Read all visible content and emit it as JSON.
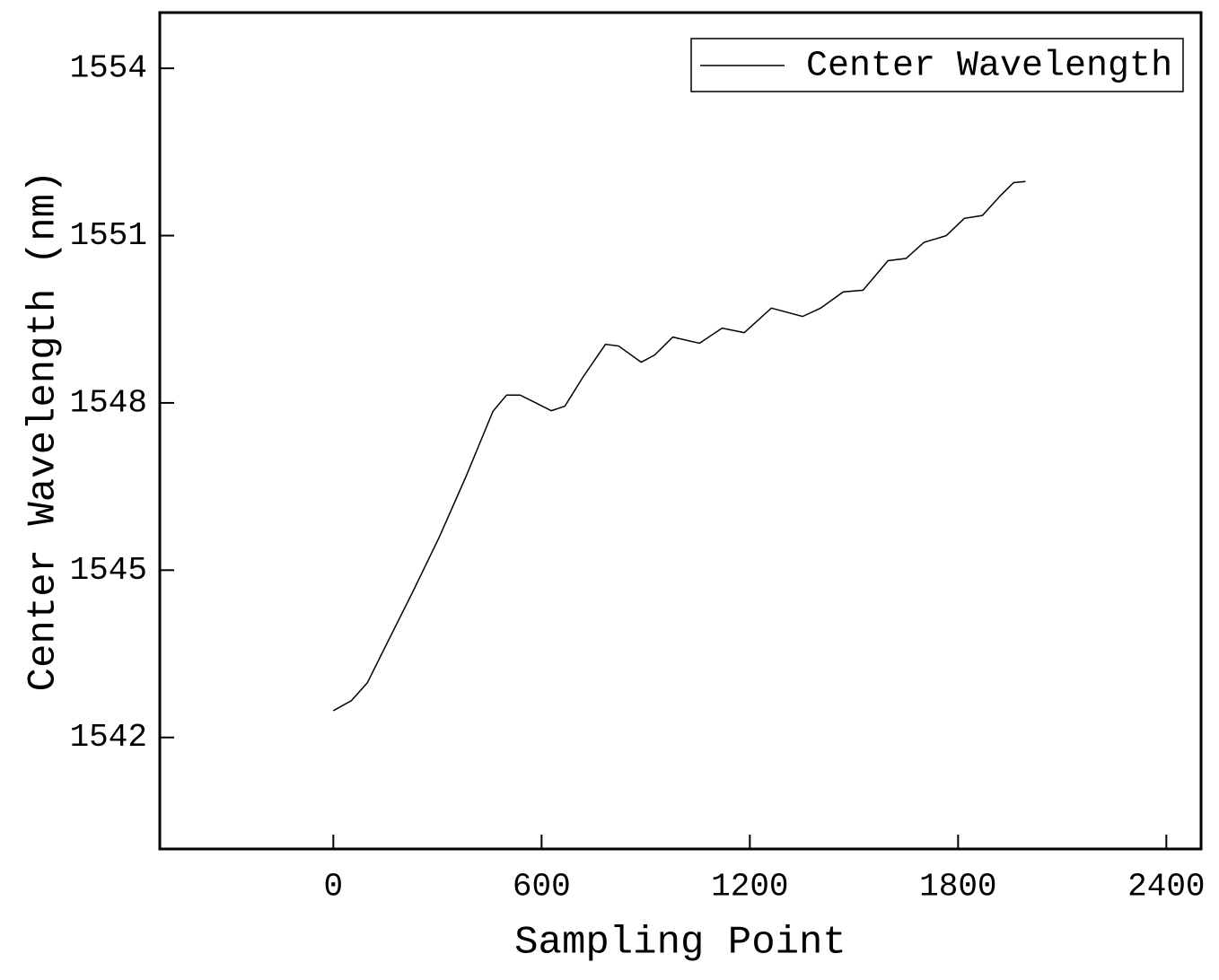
{
  "chart_data": {
    "type": "line",
    "xlabel": "Sampling Point",
    "ylabel": "Center Wavelength (nm)",
    "x": [
      0,
      52,
      98,
      150,
      228,
      305,
      383,
      460,
      499,
      538,
      577,
      628,
      667,
      719,
      784,
      822,
      887,
      926,
      978,
      1055,
      1120,
      1184,
      1262,
      1352,
      1404,
      1469,
      1526,
      1598,
      1650,
      1702,
      1766,
      1818,
      1870,
      1921,
      1960,
      1994
    ],
    "series": [
      {
        "name": "Center Wavelength",
        "color": "#000000",
        "values": [
          1542.48,
          1542.66,
          1542.98,
          1543.63,
          1544.6,
          1545.59,
          1546.69,
          1547.85,
          1548.14,
          1548.14,
          1548.02,
          1547.86,
          1547.94,
          1548.46,
          1549.05,
          1549.02,
          1548.73,
          1548.86,
          1549.18,
          1549.07,
          1549.34,
          1549.26,
          1549.7,
          1549.55,
          1549.7,
          1549.99,
          1550.02,
          1550.55,
          1550.59,
          1550.88,
          1551.0,
          1551.31,
          1551.36,
          1551.71,
          1551.95,
          1551.97
        ]
      }
    ],
    "xlim": [
      -500,
      2500
    ],
    "xticks": [
      0,
      600,
      1200,
      1800,
      2400
    ],
    "ylim": [
      1540,
      1555
    ],
    "yticks": [
      1542,
      1545,
      1548,
      1551,
      1554
    ],
    "legend": "upper right"
  }
}
